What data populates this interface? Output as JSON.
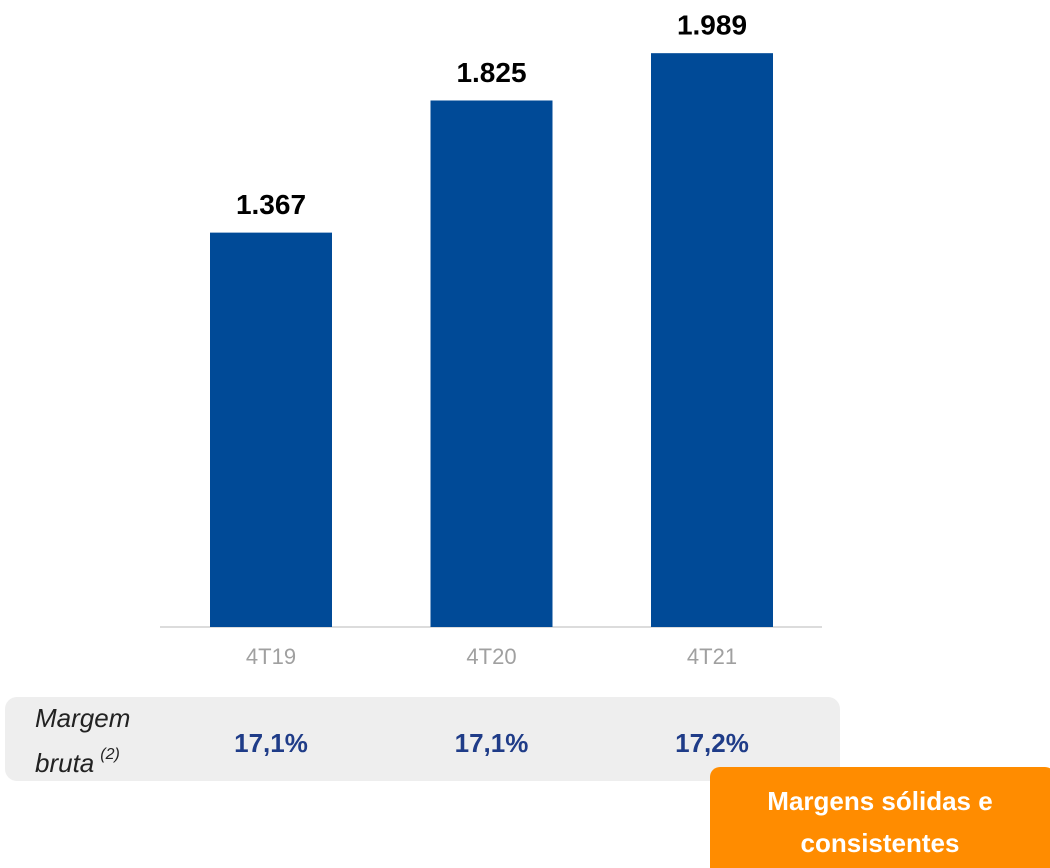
{
  "chart_data": {
    "type": "bar",
    "categories": [
      "4T19",
      "4T20",
      "4T21"
    ],
    "values": [
      1367,
      1825,
      1989
    ],
    "value_labels": [
      "1.367",
      "1.825",
      "1.989"
    ],
    "color": "#004a97",
    "ylim": [
      0,
      2000
    ],
    "margin_row": {
      "label": "Margem",
      "label_2": "bruta",
      "note": "(2)",
      "values": [
        17.1,
        17.1,
        17.2
      ],
      "value_labels": [
        "17,1%",
        "17,1%",
        "17,2%"
      ]
    },
    "callout": [
      "Margens sólidas e",
      "consistentes"
    ]
  }
}
